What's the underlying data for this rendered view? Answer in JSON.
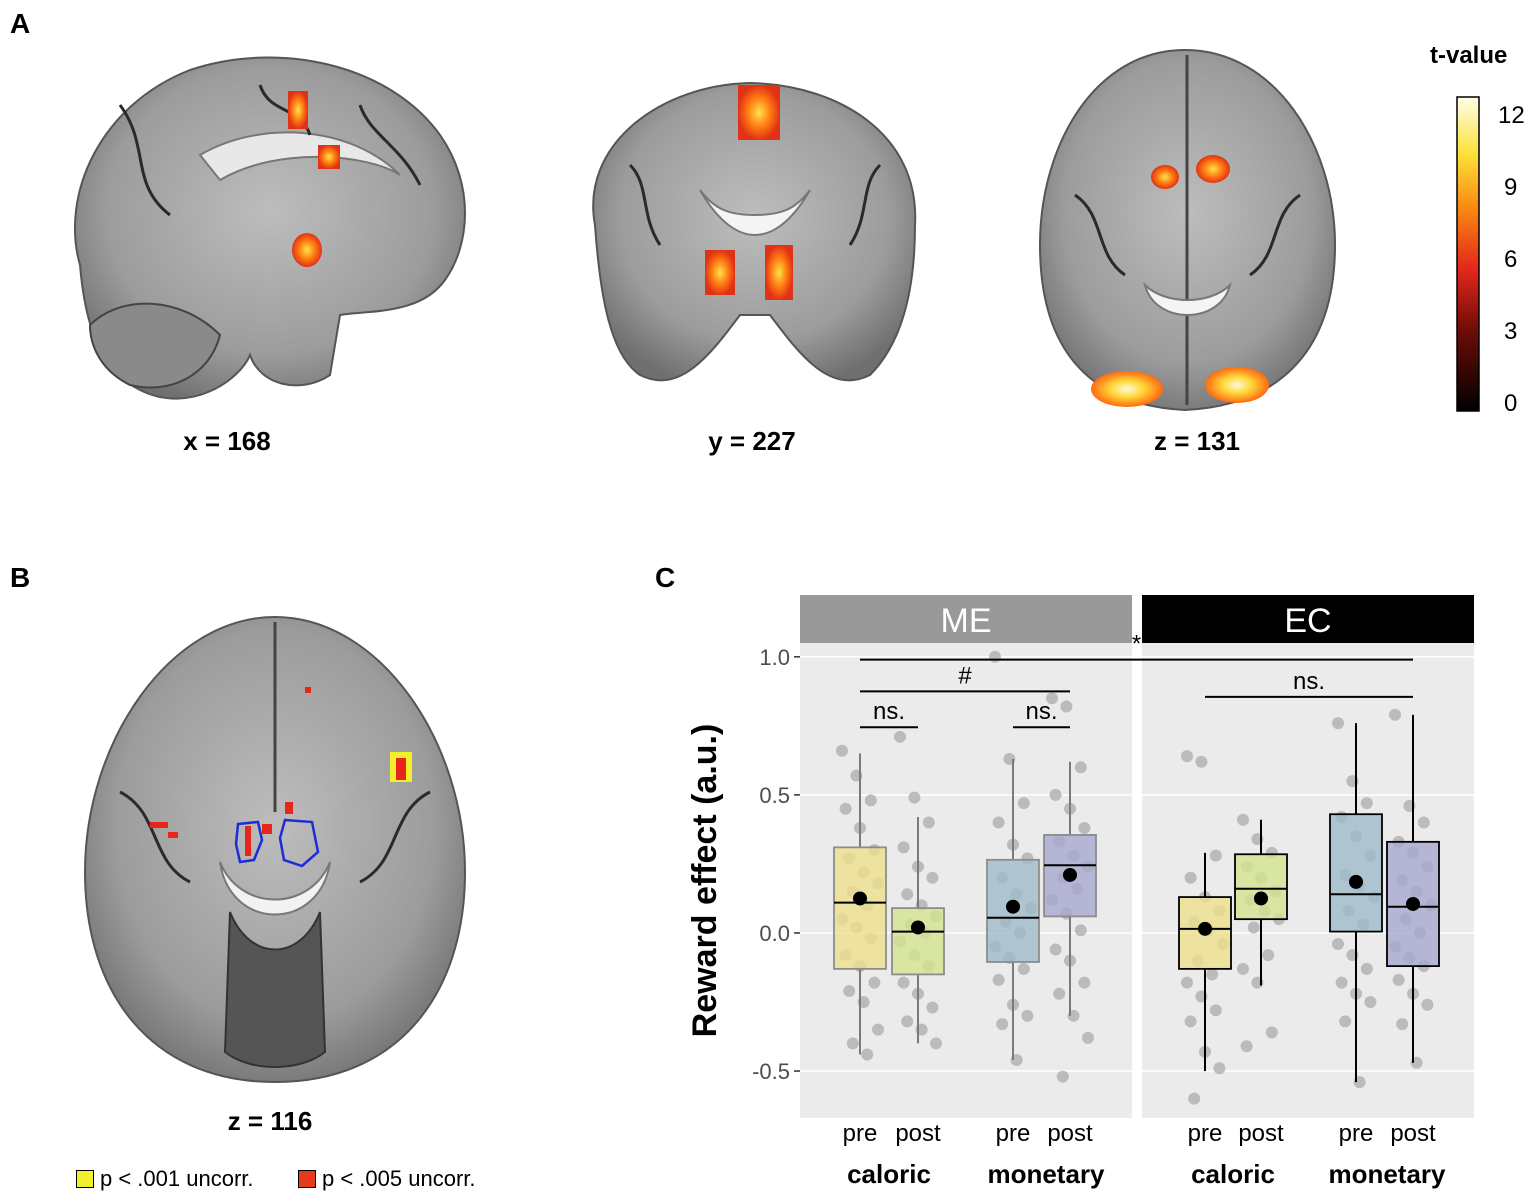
{
  "panel_a": {
    "letter": "A",
    "slices": [
      {
        "label": "x = 168"
      },
      {
        "label": "y = 227"
      },
      {
        "label": "z = 131"
      }
    ],
    "colorbar": {
      "title": "t-value",
      "ticks": [
        "12",
        "9",
        "6",
        "3",
        "0"
      ]
    }
  },
  "panel_b": {
    "letter": "B",
    "slice_label": "z = 116",
    "legend": [
      {
        "label": "p < .001 uncorr.",
        "color": "#f2ef2b"
      },
      {
        "label": "p < .005 uncorr.",
        "color": "#e8391f"
      }
    ]
  },
  "panel_c": {
    "letter": "C"
  },
  "chart_data": {
    "type": "box",
    "ylabel": "Reward effect (a.u.)",
    "ylim": [
      -0.67,
      1.05
    ],
    "y_ticks": [
      "1.0",
      "0.5",
      "0.0",
      "-0.5"
    ],
    "y_tick_values": [
      1.0,
      0.5,
      0.0,
      -0.5
    ],
    "facets": [
      "ME",
      "EC"
    ],
    "x_tick_labels": [
      "pre",
      "post"
    ],
    "x_group_labels": [
      "caloric",
      "monetary"
    ],
    "colors": {
      "pre_caloric": "#ede08c",
      "post_caloric": "#d4e391",
      "pre_monetary": "#9fbccb",
      "post_monetary": "#a7a9d0"
    },
    "boxes": [
      {
        "facet": "ME",
        "group": "caloric",
        "time": "pre",
        "q1": -0.13,
        "median": 0.11,
        "q3": 0.31,
        "lower": -0.44,
        "upper": 0.65,
        "mean": 0.125
      },
      {
        "facet": "ME",
        "group": "caloric",
        "time": "post",
        "q1": -0.15,
        "median": 0.005,
        "q3": 0.09,
        "lower": -0.4,
        "upper": 0.42,
        "mean": 0.02
      },
      {
        "facet": "ME",
        "group": "monetary",
        "time": "pre",
        "q1": -0.105,
        "median": 0.055,
        "q3": 0.265,
        "lower": -0.46,
        "upper": 0.63,
        "mean": 0.095
      },
      {
        "facet": "ME",
        "group": "monetary",
        "time": "post",
        "q1": 0.06,
        "median": 0.245,
        "q3": 0.355,
        "lower": -0.3,
        "upper": 0.62,
        "mean": 0.21
      },
      {
        "facet": "EC",
        "group": "caloric",
        "time": "pre",
        "q1": -0.13,
        "median": 0.015,
        "q3": 0.13,
        "lower": -0.5,
        "upper": 0.29,
        "mean": 0.015
      },
      {
        "facet": "EC",
        "group": "caloric",
        "time": "post",
        "q1": 0.05,
        "median": 0.16,
        "q3": 0.285,
        "lower": -0.19,
        "upper": 0.41,
        "mean": 0.125
      },
      {
        "facet": "EC",
        "group": "monetary",
        "time": "pre",
        "q1": 0.005,
        "median": 0.14,
        "q3": 0.43,
        "lower": -0.54,
        "upper": 0.76,
        "mean": 0.185
      },
      {
        "facet": "EC",
        "group": "monetary",
        "time": "post",
        "q1": -0.12,
        "median": 0.095,
        "q3": 0.33,
        "lower": -0.47,
        "upper": 0.79,
        "mean": 0.105
      }
    ],
    "points": [
      [
        0.66,
        0.57,
        0.48,
        0.45,
        0.38,
        0.3,
        0.27,
        0.22,
        0.18,
        0.15,
        0.1,
        0.05,
        0.02,
        -0.02,
        -0.08,
        -0.12,
        -0.18,
        -0.21,
        -0.25,
        -0.35,
        -0.4,
        -0.44
      ],
      [
        0.71,
        0.49,
        0.4,
        0.31,
        0.24,
        0.2,
        0.14,
        0.1,
        0.06,
        0.03,
        0.0,
        -0.03,
        -0.08,
        -0.12,
        -0.18,
        -0.22,
        -0.27,
        -0.32,
        -0.35,
        -0.4
      ],
      [
        1.0,
        0.63,
        0.47,
        0.4,
        0.32,
        0.27,
        0.2,
        0.14,
        0.09,
        0.04,
        0.0,
        -0.05,
        -0.09,
        -0.13,
        -0.17,
        -0.26,
        -0.3,
        -0.33,
        -0.46
      ],
      [
        0.85,
        0.82,
        0.6,
        0.5,
        0.45,
        0.38,
        0.33,
        0.28,
        0.24,
        0.2,
        0.16,
        0.12,
        0.07,
        0.01,
        -0.06,
        -0.1,
        -0.18,
        -0.22,
        -0.3,
        -0.38,
        -0.52
      ],
      [
        0.64,
        0.62,
        0.28,
        0.2,
        0.13,
        0.08,
        0.04,
        0.01,
        -0.04,
        -0.1,
        -0.15,
        -0.18,
        -0.23,
        -0.28,
        -0.32,
        -0.43,
        -0.49,
        -0.6
      ],
      [
        0.41,
        0.34,
        0.29,
        0.24,
        0.2,
        0.15,
        0.12,
        0.08,
        0.05,
        0.02,
        -0.08,
        -0.13,
        -0.18,
        -0.36,
        -0.41
      ],
      [
        0.76,
        0.55,
        0.47,
        0.42,
        0.35,
        0.28,
        0.21,
        0.17,
        0.13,
        0.08,
        0.03,
        -0.04,
        -0.08,
        -0.13,
        -0.18,
        -0.22,
        -0.25,
        -0.32,
        -0.54
      ],
      [
        0.79,
        0.46,
        0.4,
        0.33,
        0.29,
        0.24,
        0.19,
        0.15,
        0.1,
        0.05,
        0.0,
        -0.05,
        -0.09,
        -0.12,
        -0.17,
        -0.22,
        -0.26,
        -0.33,
        -0.47
      ]
    ],
    "significance": [
      {
        "label": "*",
        "y": 0.99,
        "from": 0,
        "to": 7
      },
      {
        "label": "#",
        "y": 0.875,
        "from": 0,
        "to": 3
      },
      {
        "label": "ns.",
        "y": 0.745,
        "from": 0,
        "to": 1
      },
      {
        "label": "ns.",
        "y": 0.745,
        "from": 2,
        "to": 3
      },
      {
        "label": "ns.",
        "y": 0.855,
        "from": 4,
        "to": 7
      }
    ]
  }
}
